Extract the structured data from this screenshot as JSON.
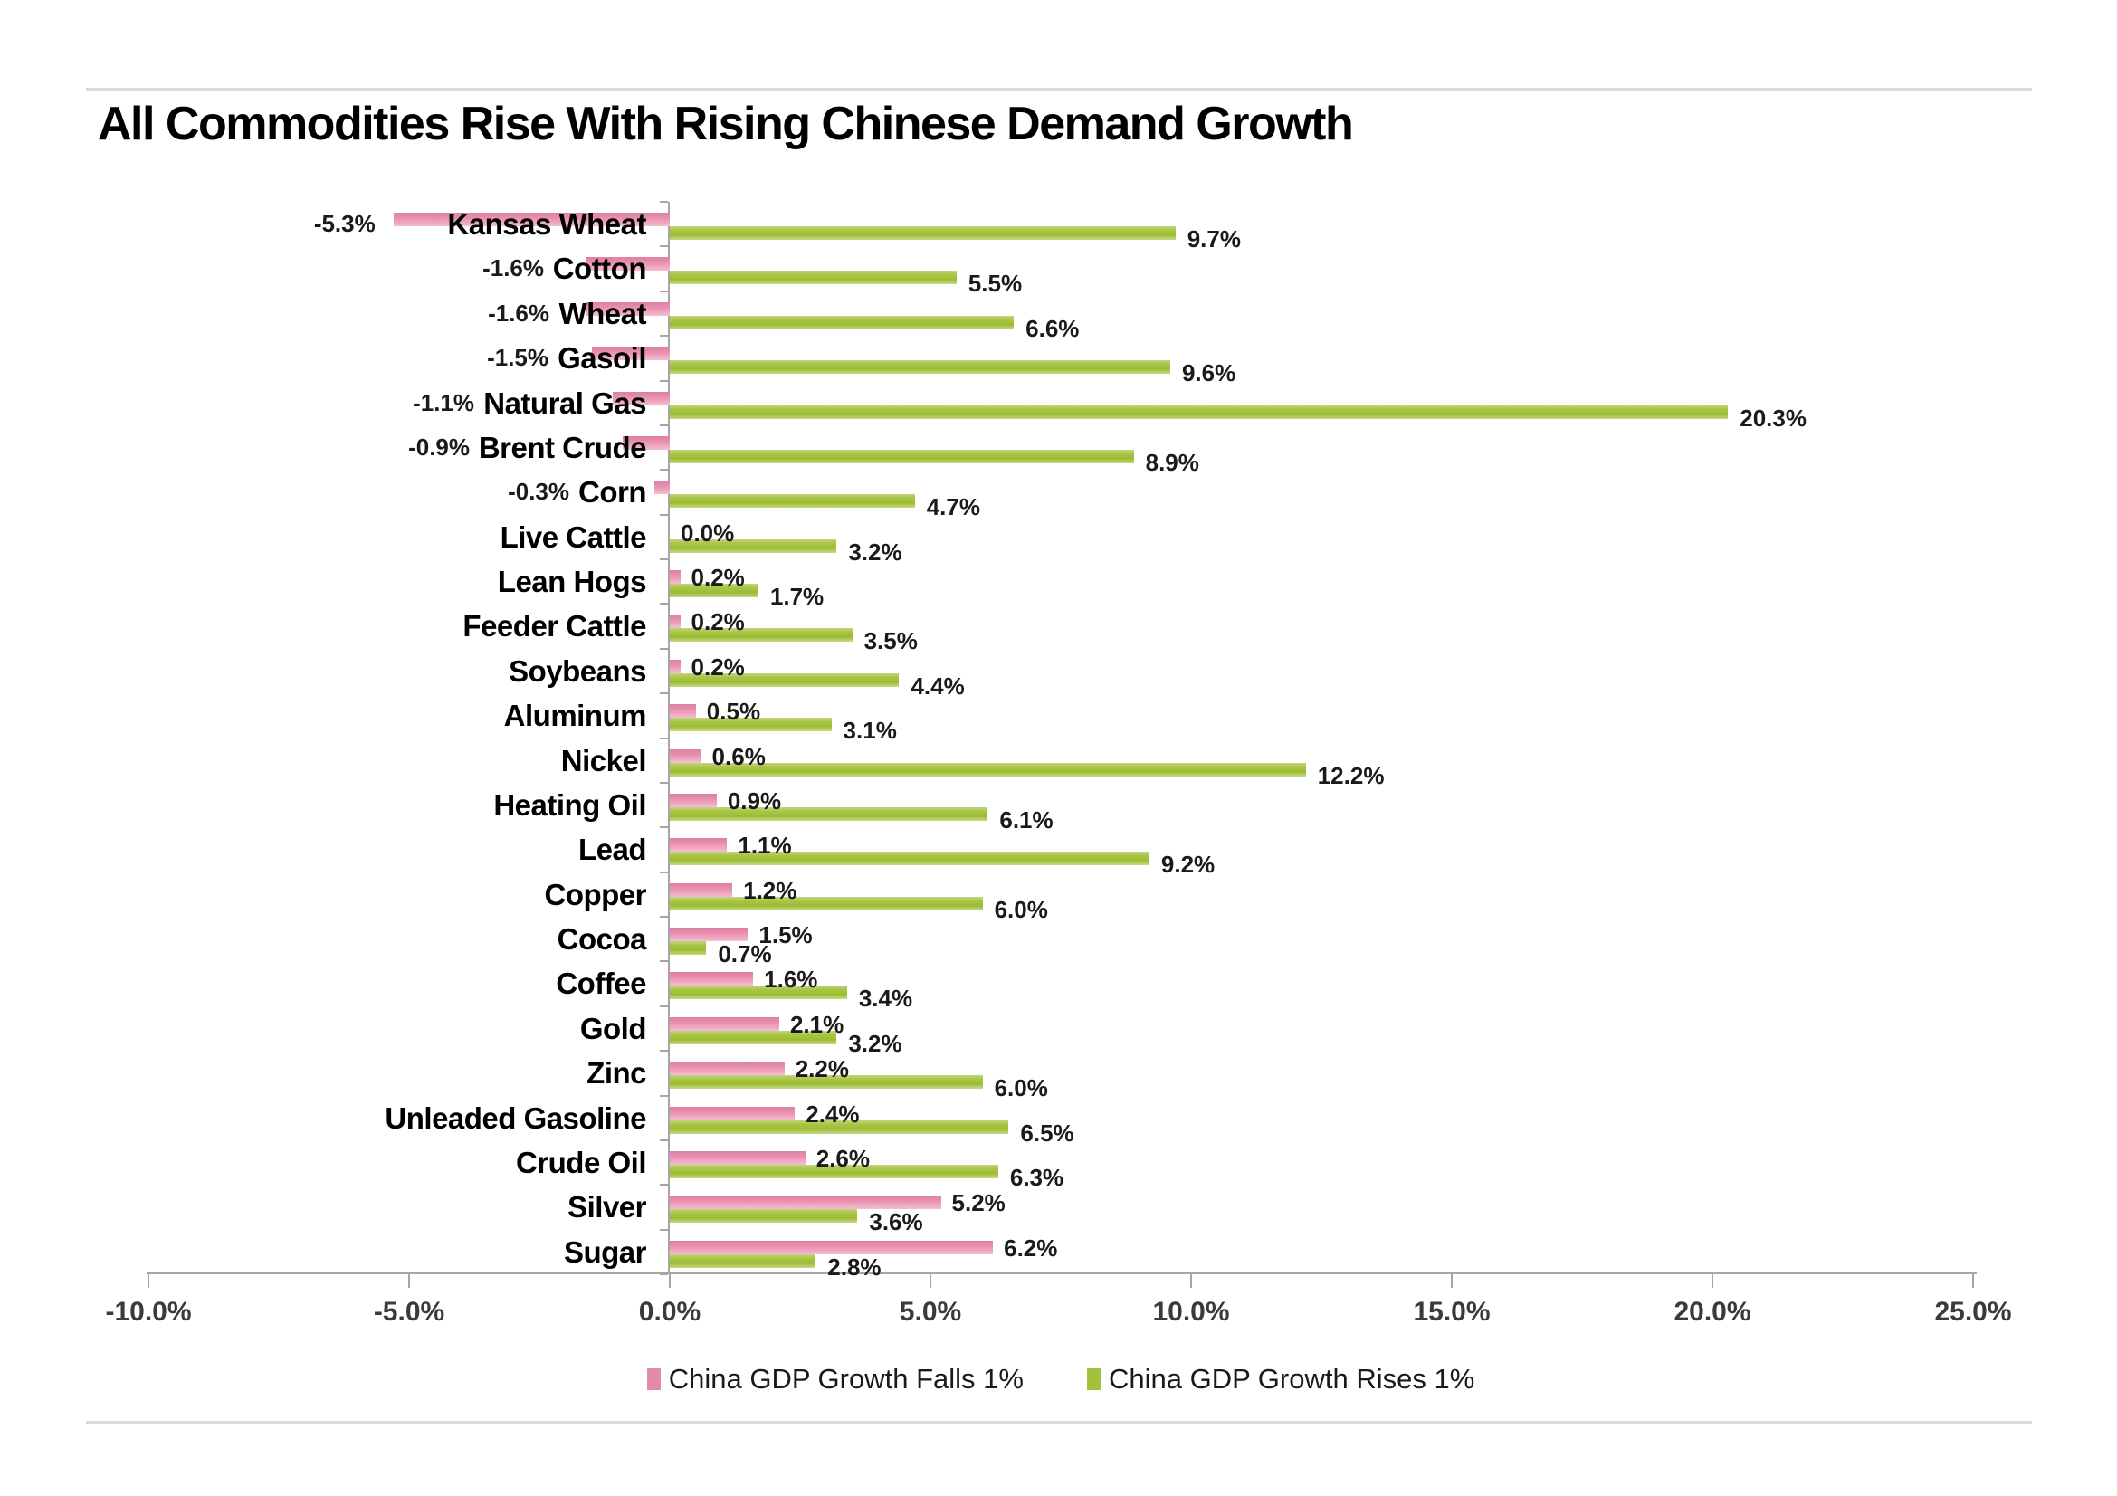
{
  "title": "All Commodities Rise With Rising Chinese Demand Growth",
  "chart_data": {
    "type": "bar",
    "orientation": "horizontal",
    "title": "All Commodities Rise With Rising Chinese Demand Growth",
    "categories": [
      "Kansas Wheat",
      "Cotton",
      "Wheat",
      "Gasoil",
      "Natural Gas",
      "Brent Crude",
      "Corn",
      "Live Cattle",
      "Lean Hogs",
      "Feeder Cattle",
      "Soybeans",
      "Aluminum",
      "Nickel",
      "Heating Oil",
      "Lead",
      "Copper",
      "Cocoa",
      "Coffee",
      "Gold",
      "Zinc",
      "Unleaded Gasoline",
      "Crude Oil",
      "Silver",
      "Sugar"
    ],
    "series": [
      {
        "name": "China GDP Growth Falls 1%",
        "color": "#e08bac",
        "values": [
          -5.3,
          -1.6,
          -1.6,
          -1.5,
          -1.1,
          -0.9,
          -0.3,
          0.0,
          0.2,
          0.2,
          0.2,
          0.5,
          0.6,
          0.9,
          1.1,
          1.2,
          1.5,
          1.6,
          2.1,
          2.2,
          2.4,
          2.6,
          5.2,
          6.2
        ]
      },
      {
        "name": "China GDP Growth Rises 1%",
        "color": "#a3c13c",
        "values": [
          9.7,
          5.5,
          6.6,
          9.6,
          20.3,
          8.9,
          4.7,
          3.2,
          1.7,
          3.5,
          4.4,
          3.1,
          12.2,
          6.1,
          9.2,
          6.0,
          0.7,
          3.4,
          3.2,
          6.0,
          6.5,
          6.3,
          3.6,
          2.8
        ]
      }
    ],
    "value_label_format": "one-decimal-percent",
    "x_axis": {
      "tick_values": [
        -10,
        -5,
        0,
        5,
        10,
        15,
        20,
        25
      ],
      "tick_labels": [
        "-10.0%",
        "-5.0%",
        "0.0%",
        "5.0%",
        "10.0%",
        "15.0%",
        "20.0%",
        "25.0%"
      ],
      "range": [
        -10,
        25
      ],
      "grid": false
    },
    "legend_position": "bottom-center",
    "axis_color": "#a6a6a6"
  }
}
